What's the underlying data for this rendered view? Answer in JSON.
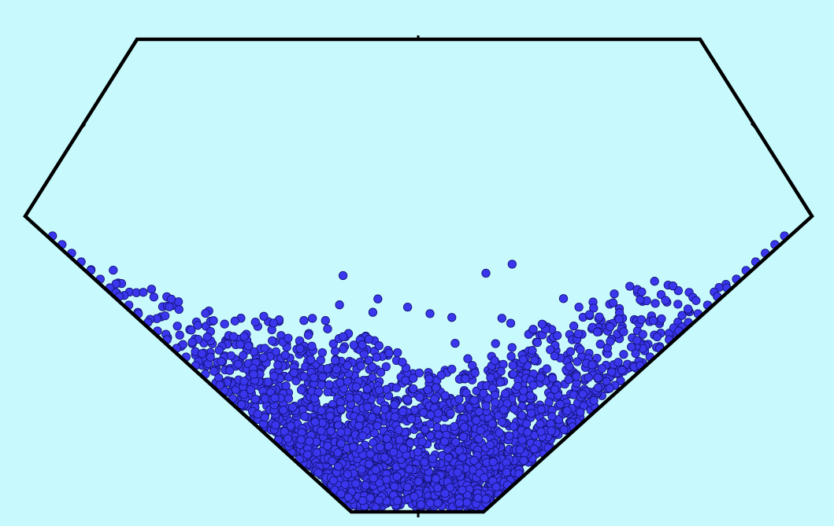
{
  "scene": {
    "background_color": "#c8fafd",
    "container_outline_color": "#000000",
    "particle_fill_color": "#3a36ee",
    "particle_stroke_color": "#15157a",
    "container_shape": "hexagonal-hopper",
    "particle_shape": "circle"
  }
}
